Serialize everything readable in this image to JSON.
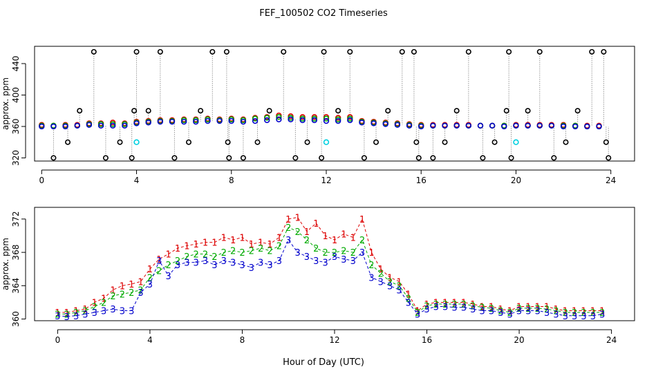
{
  "title": "FEF_100502  CO2 Timeseries",
  "xlabel": "Hour of Day (UTC)",
  "colors": {
    "inlet_1": "#dd0000",
    "inlet_2": "#00aa00",
    "inlet_3": "#0000cc",
    "black": "#000000",
    "cyan": "#00d0e0",
    "connector": "#999999"
  },
  "chart_data": [
    {
      "type": "scatter",
      "panel": "top",
      "ylabel": "approx. ppm",
      "xlim": [
        -0.3,
        25
      ],
      "ylim": [
        316,
        462
      ],
      "xticks": [
        0,
        4,
        8,
        12,
        16,
        20,
        24
      ],
      "yticks": [
        320,
        360,
        400,
        440
      ],
      "grid": false,
      "series": [
        {
          "style": "circles_red",
          "x": [
            0,
            0.5,
            1,
            1.5,
            2,
            2.5,
            3,
            3.5,
            4,
            4.5,
            5,
            5.5,
            6,
            6.5,
            7,
            7.5,
            8,
            8.5,
            9,
            9.5,
            10,
            10.5,
            11,
            11.5,
            12,
            12.5,
            13,
            13.5,
            14,
            14.5,
            15,
            15.5,
            16,
            16.5,
            17,
            17.5,
            18,
            18.5,
            19,
            19.5,
            20,
            20.5,
            21,
            21.5,
            22,
            22.5,
            23,
            23.5
          ],
          "y": [
            362,
            361,
            362,
            362,
            364,
            364,
            365,
            364,
            366,
            367,
            368,
            368,
            369,
            369,
            370,
            369,
            370,
            369,
            371,
            372,
            374,
            373,
            372,
            372,
            372,
            371,
            372,
            367,
            366,
            365,
            364,
            363,
            362,
            362,
            362,
            362,
            362,
            361,
            361,
            361,
            362,
            362,
            362,
            362,
            362,
            361,
            361,
            361
          ]
        },
        {
          "style": "circles_green",
          "x": [
            0,
            0.5,
            1,
            1.5,
            2,
            2.5,
            3,
            3.5,
            4,
            4.5,
            5,
            5.5,
            6,
            6.5,
            7,
            7.5,
            8,
            8.5,
            9,
            9.5,
            10,
            10.5,
            11,
            11.5,
            12,
            12.5,
            13,
            13.5,
            14,
            14.5,
            15,
            15.5,
            16,
            16.5,
            17,
            17.5,
            18,
            18.5,
            19,
            19.5,
            20,
            20.5,
            21,
            21.5,
            22,
            22.5,
            23,
            23.5
          ],
          "y": [
            361,
            361,
            361,
            361,
            363,
            363,
            363,
            363,
            365,
            366,
            367,
            367,
            368,
            368,
            369,
            368,
            369,
            368,
            370,
            371,
            372,
            371,
            370,
            370,
            370,
            369,
            370,
            366,
            365,
            364,
            363,
            362,
            361,
            361,
            361,
            361,
            361,
            361,
            361,
            361,
            361,
            361,
            361,
            361,
            361,
            361,
            360,
            360
          ]
        },
        {
          "style": "circles_blue",
          "x": [
            0,
            0.5,
            1,
            1.5,
            2,
            2.5,
            3,
            3.5,
            4,
            4.5,
            5,
            5.5,
            6,
            6.5,
            7,
            7.5,
            8,
            8.5,
            9,
            9.5,
            10,
            10.5,
            11,
            11.5,
            12,
            12.5,
            13,
            13.5,
            14,
            14.5,
            15,
            15.5,
            16,
            16.5,
            17,
            17.5,
            18,
            18.5,
            19,
            19.5,
            20,
            20.5,
            21,
            21.5,
            22,
            22.5,
            23,
            23.5
          ],
          "y": [
            360,
            360,
            360,
            361,
            362,
            361,
            361,
            361,
            364,
            365,
            366,
            366,
            366,
            366,
            367,
            367,
            367,
            366,
            367,
            368,
            369,
            369,
            368,
            368,
            367,
            367,
            368,
            365,
            364,
            363,
            362,
            361,
            360,
            361,
            361,
            361,
            361,
            361,
            361,
            360,
            361,
            361,
            361,
            361,
            360,
            360,
            360,
            360
          ]
        },
        {
          "style": "circles_black_outliers",
          "x": [
            0.5,
            1.1,
            1.6,
            2.2,
            2.7,
            3.3,
            3.8,
            3.9,
            4.0,
            4.5,
            5.0,
            5.6,
            6.2,
            6.7,
            7.2,
            7.8,
            7.85,
            7.9,
            8.5,
            9.1,
            9.6,
            10.2,
            10.7,
            11.2,
            11.8,
            11.9,
            12.5,
            13.0,
            13.6,
            14.1,
            14.6,
            15.2,
            15.7,
            15.8,
            15.9,
            16.5,
            17.0,
            17.5,
            18.0,
            18.6,
            19.1,
            19.6,
            19.7,
            19.8,
            20.5,
            21.0,
            21.6,
            22.1,
            22.6,
            23.2,
            23.7,
            23.8,
            23.9
          ],
          "y": [
            320,
            340,
            380,
            455,
            320,
            340,
            320,
            380,
            455,
            380,
            455,
            320,
            340,
            380,
            455,
            455,
            340,
            320,
            320,
            340,
            380,
            455,
            320,
            340,
            320,
            455,
            380,
            455,
            320,
            340,
            380,
            455,
            455,
            340,
            320,
            320,
            340,
            380,
            455,
            320,
            340,
            380,
            455,
            320,
            380,
            455,
            320,
            340,
            380,
            455,
            455,
            340,
            320
          ]
        },
        {
          "style": "circles_cyan",
          "x": [
            4.0,
            12.0,
            20.0
          ],
          "y": [
            340,
            340,
            340
          ]
        }
      ]
    },
    {
      "type": "scatter",
      "panel": "bottom",
      "ylabel": "approx. ppm",
      "xlim": [
        -1.0,
        25
      ],
      "ylim": [
        359.8,
        373.4
      ],
      "xticks": [
        0,
        4,
        8,
        12,
        16,
        20,
        24
      ],
      "yticks": [
        360,
        364,
        368,
        372
      ],
      "grid": false,
      "series": [
        {
          "marker": "1",
          "color": "#dd0000",
          "x": [
            0,
            0.4,
            0.8,
            1.2,
            1.6,
            2.0,
            2.4,
            2.8,
            3.2,
            3.6,
            4.0,
            4.4,
            4.8,
            5.2,
            5.6,
            6.0,
            6.4,
            6.8,
            7.2,
            7.6,
            8.0,
            8.4,
            8.8,
            9.2,
            9.6,
            10.0,
            10.4,
            10.8,
            11.2,
            11.6,
            12.0,
            12.4,
            12.8,
            13.2,
            13.6,
            14.0,
            14.4,
            14.8,
            15.2,
            15.6,
            16.0,
            16.4,
            16.8,
            17.2,
            17.6,
            18.0,
            18.4,
            18.8,
            19.2,
            19.6,
            20.0,
            20.4,
            20.8,
            21.2,
            21.6,
            22.0,
            22.4,
            22.8,
            23.2,
            23.6
          ],
          "y": [
            360.8,
            360.8,
            361.0,
            361.2,
            362.0,
            362.5,
            363.5,
            364.0,
            364.2,
            364.5,
            366.0,
            367.2,
            367.8,
            368.5,
            368.8,
            369.0,
            369.2,
            369.2,
            369.8,
            369.5,
            369.8,
            369.0,
            369.2,
            369.0,
            369.8,
            372.0,
            372.2,
            370.5,
            371.5,
            370.0,
            369.5,
            370.2,
            369.8,
            372.0,
            368.0,
            366.0,
            365.0,
            364.5,
            363.0,
            361.0,
            361.8,
            362.0,
            362.0,
            362.0,
            362.0,
            361.8,
            361.5,
            361.5,
            361.2,
            361.0,
            361.5,
            361.5,
            361.5,
            361.5,
            361.2,
            361.0,
            361.0,
            361.0,
            361.0,
            361.0
          ]
        },
        {
          "marker": "2",
          "color": "#00aa00",
          "x": [
            0,
            0.4,
            0.8,
            1.2,
            1.6,
            2.0,
            2.4,
            2.8,
            3.2,
            3.6,
            4.0,
            4.4,
            4.8,
            5.2,
            5.6,
            6.0,
            6.4,
            6.8,
            7.2,
            7.6,
            8.0,
            8.4,
            8.8,
            9.2,
            9.6,
            10.0,
            10.4,
            10.8,
            11.2,
            11.6,
            12.0,
            12.4,
            12.8,
            13.2,
            13.6,
            14.0,
            14.4,
            14.8,
            15.2,
            15.6,
            16.0,
            16.4,
            16.8,
            17.2,
            17.6,
            18.0,
            18.4,
            18.8,
            19.2,
            19.6,
            20.0,
            20.4,
            20.8,
            21.2,
            21.6,
            22.0,
            22.4,
            22.8,
            23.2,
            23.6
          ],
          "y": [
            360.6,
            360.6,
            360.8,
            361.0,
            361.5,
            362.0,
            362.8,
            363.0,
            363.2,
            363.5,
            365.0,
            365.8,
            366.5,
            367.0,
            367.5,
            367.8,
            367.8,
            367.5,
            368.0,
            368.2,
            368.0,
            368.2,
            368.5,
            368.2,
            368.8,
            371.0,
            370.5,
            369.5,
            368.5,
            368.0,
            368.0,
            368.2,
            368.0,
            369.5,
            366.5,
            365.5,
            364.5,
            364.0,
            362.5,
            360.8,
            361.6,
            361.8,
            361.8,
            361.8,
            361.8,
            361.6,
            361.4,
            361.3,
            361.0,
            360.8,
            361.3,
            361.3,
            361.3,
            361.2,
            361.0,
            360.8,
            360.8,
            360.8,
            360.8,
            360.8
          ]
        },
        {
          "marker": "3",
          "color": "#0000cc",
          "x": [
            0,
            0.4,
            0.8,
            1.2,
            1.6,
            2.0,
            2.4,
            2.8,
            3.2,
            3.6,
            4.0,
            4.4,
            4.8,
            5.2,
            5.6,
            6.0,
            6.4,
            6.8,
            7.2,
            7.6,
            8.0,
            8.4,
            8.8,
            9.2,
            9.6,
            10.0,
            10.4,
            10.8,
            11.2,
            11.6,
            12.0,
            12.4,
            12.8,
            13.2,
            13.6,
            14.0,
            14.4,
            14.8,
            15.2,
            15.6,
            16.0,
            16.4,
            16.8,
            17.2,
            17.6,
            18.0,
            18.4,
            18.8,
            19.2,
            19.6,
            20.0,
            20.4,
            20.8,
            21.2,
            21.6,
            22.0,
            22.4,
            22.8,
            23.2,
            23.6
          ],
          "y": [
            360.4,
            360.3,
            360.4,
            360.6,
            360.8,
            361.0,
            361.2,
            361.0,
            361.0,
            363.2,
            364.2,
            367.0,
            365.2,
            366.5,
            366.8,
            366.8,
            367.0,
            366.5,
            367.0,
            366.8,
            366.5,
            366.2,
            366.8,
            366.5,
            367.0,
            369.5,
            368.0,
            367.5,
            367.0,
            366.8,
            367.5,
            367.2,
            367.0,
            368.0,
            365.0,
            364.5,
            364.0,
            363.5,
            362.0,
            360.6,
            361.2,
            361.5,
            361.5,
            361.4,
            361.4,
            361.2,
            361.0,
            361.0,
            360.8,
            360.6,
            361.0,
            361.0,
            361.0,
            360.8,
            360.6,
            360.4,
            360.4,
            360.4,
            360.4,
            360.6
          ]
        }
      ]
    }
  ]
}
